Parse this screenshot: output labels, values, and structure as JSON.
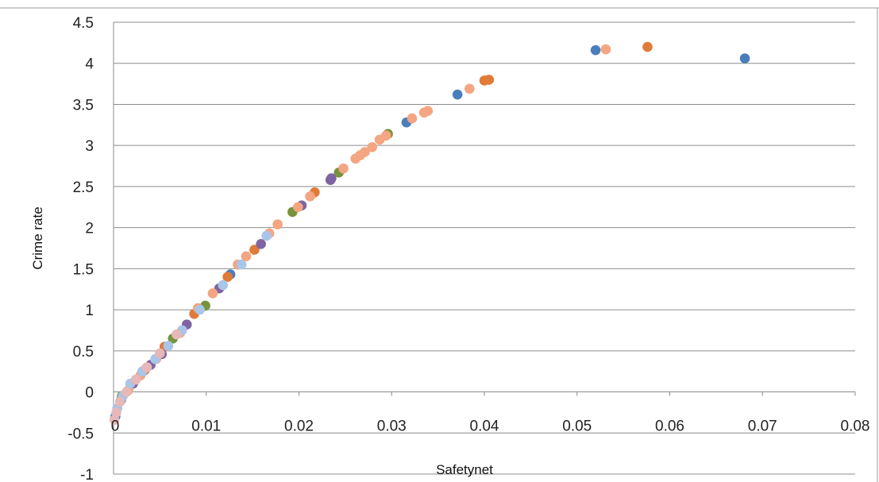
{
  "chart_data": {
    "type": "scatter",
    "title": "",
    "xlabel": "Safetynet",
    "ylabel": "Crime rate",
    "xlim": [
      0,
      0.08
    ],
    "ylim": [
      -1,
      4.5
    ],
    "grid": true,
    "legend": "none",
    "x_ticks": [
      "0",
      "0.01",
      "0.02",
      "0.03",
      "0.04",
      "0.05",
      "0.06",
      "0.07",
      "0.08"
    ],
    "y_ticks": [
      "4.5",
      "4",
      "3.5",
      "3",
      "2.5",
      "2",
      "1.5",
      "1",
      "0.5",
      "0",
      "-0.5",
      "-1"
    ],
    "colors": [
      "#4a7ebb",
      "#e07b39",
      "#77933c",
      "#8064a2",
      "#f4a582",
      "#a9c5e8",
      "#e6b8b7"
    ],
    "series": [
      {
        "color": "#4a7ebb",
        "points": [
          [
            0.0681,
            4.06
          ],
          [
            0.052,
            4.16
          ],
          [
            0.0371,
            3.62
          ],
          [
            0.0316,
            3.28
          ],
          [
            0.0126,
            1.43
          ],
          [
            0.0033,
            0.26
          ],
          [
            0.0008,
            -0.1
          ],
          [
            0.0002,
            -0.3
          ]
        ]
      },
      {
        "color": "#e07b39",
        "points": [
          [
            0.0405,
            3.8
          ],
          [
            0.04,
            3.79
          ],
          [
            0.0576,
            4.2
          ],
          [
            0.0217,
            2.43
          ],
          [
            0.0152,
            1.73
          ],
          [
            0.0123,
            1.4
          ],
          [
            0.0087,
            0.95
          ],
          [
            0.0055,
            0.55
          ],
          [
            0.0034,
            0.27
          ]
        ]
      },
      {
        "color": "#77933c",
        "points": [
          [
            0.0193,
            2.19
          ],
          [
            0.0243,
            2.67
          ],
          [
            0.0296,
            3.14
          ],
          [
            0.0099,
            1.05
          ],
          [
            0.0064,
            0.65
          ],
          [
            0.0009,
            -0.05
          ]
        ]
      },
      {
        "color": "#8064a2",
        "points": [
          [
            0.0234,
            2.58
          ],
          [
            0.0235,
            2.6
          ],
          [
            0.0203,
            2.27
          ],
          [
            0.0159,
            1.8
          ],
          [
            0.0114,
            1.26
          ],
          [
            0.0079,
            0.82
          ],
          [
            0.0052,
            0.46
          ],
          [
            0.004,
            0.33
          ],
          [
            0.0021,
            0.1
          ]
        ]
      },
      {
        "color": "#f4a582",
        "points": [
          [
            0.0531,
            4.17
          ],
          [
            0.0384,
            3.69
          ],
          [
            0.0339,
            3.42
          ],
          [
            0.0335,
            3.4
          ],
          [
            0.0322,
            3.33
          ],
          [
            0.0294,
            3.12
          ],
          [
            0.0287,
            3.07
          ],
          [
            0.0279,
            2.98
          ],
          [
            0.0271,
            2.92
          ],
          [
            0.0266,
            2.88
          ],
          [
            0.0261,
            2.84
          ],
          [
            0.0248,
            2.72
          ],
          [
            0.0212,
            2.38
          ],
          [
            0.0199,
            2.25
          ],
          [
            0.0177,
            2.04
          ],
          [
            0.0168,
            1.93
          ],
          [
            0.0143,
            1.65
          ],
          [
            0.0134,
            1.55
          ],
          [
            0.0107,
            1.2
          ],
          [
            0.0091,
            1.02
          ],
          [
            0.0072,
            0.72
          ],
          [
            0.0046,
            0.4
          ],
          [
            0.0029,
            0.2
          ],
          [
            0.0016,
            0.02
          ]
        ]
      },
      {
        "color": "#a9c5e8",
        "points": [
          [
            0.0165,
            1.9
          ],
          [
            0.0138,
            1.55
          ],
          [
            0.0118,
            1.3
          ],
          [
            0.0093,
            1.0
          ],
          [
            0.0074,
            0.75
          ],
          [
            0.0059,
            0.56
          ],
          [
            0.0045,
            0.4
          ],
          [
            0.0031,
            0.25
          ],
          [
            0.0018,
            0.1
          ],
          [
            0.001,
            -0.05
          ],
          [
            0.0004,
            -0.2
          ]
        ]
      },
      {
        "color": "#e6b8b7",
        "points": [
          [
            0.0068,
            0.7
          ],
          [
            0.005,
            0.47
          ],
          [
            0.0036,
            0.3
          ],
          [
            0.0024,
            0.15
          ],
          [
            0.0014,
            0.0
          ],
          [
            0.0007,
            -0.12
          ],
          [
            0.0003,
            -0.25
          ],
          [
            0.0001,
            -0.34
          ]
        ]
      }
    ]
  }
}
